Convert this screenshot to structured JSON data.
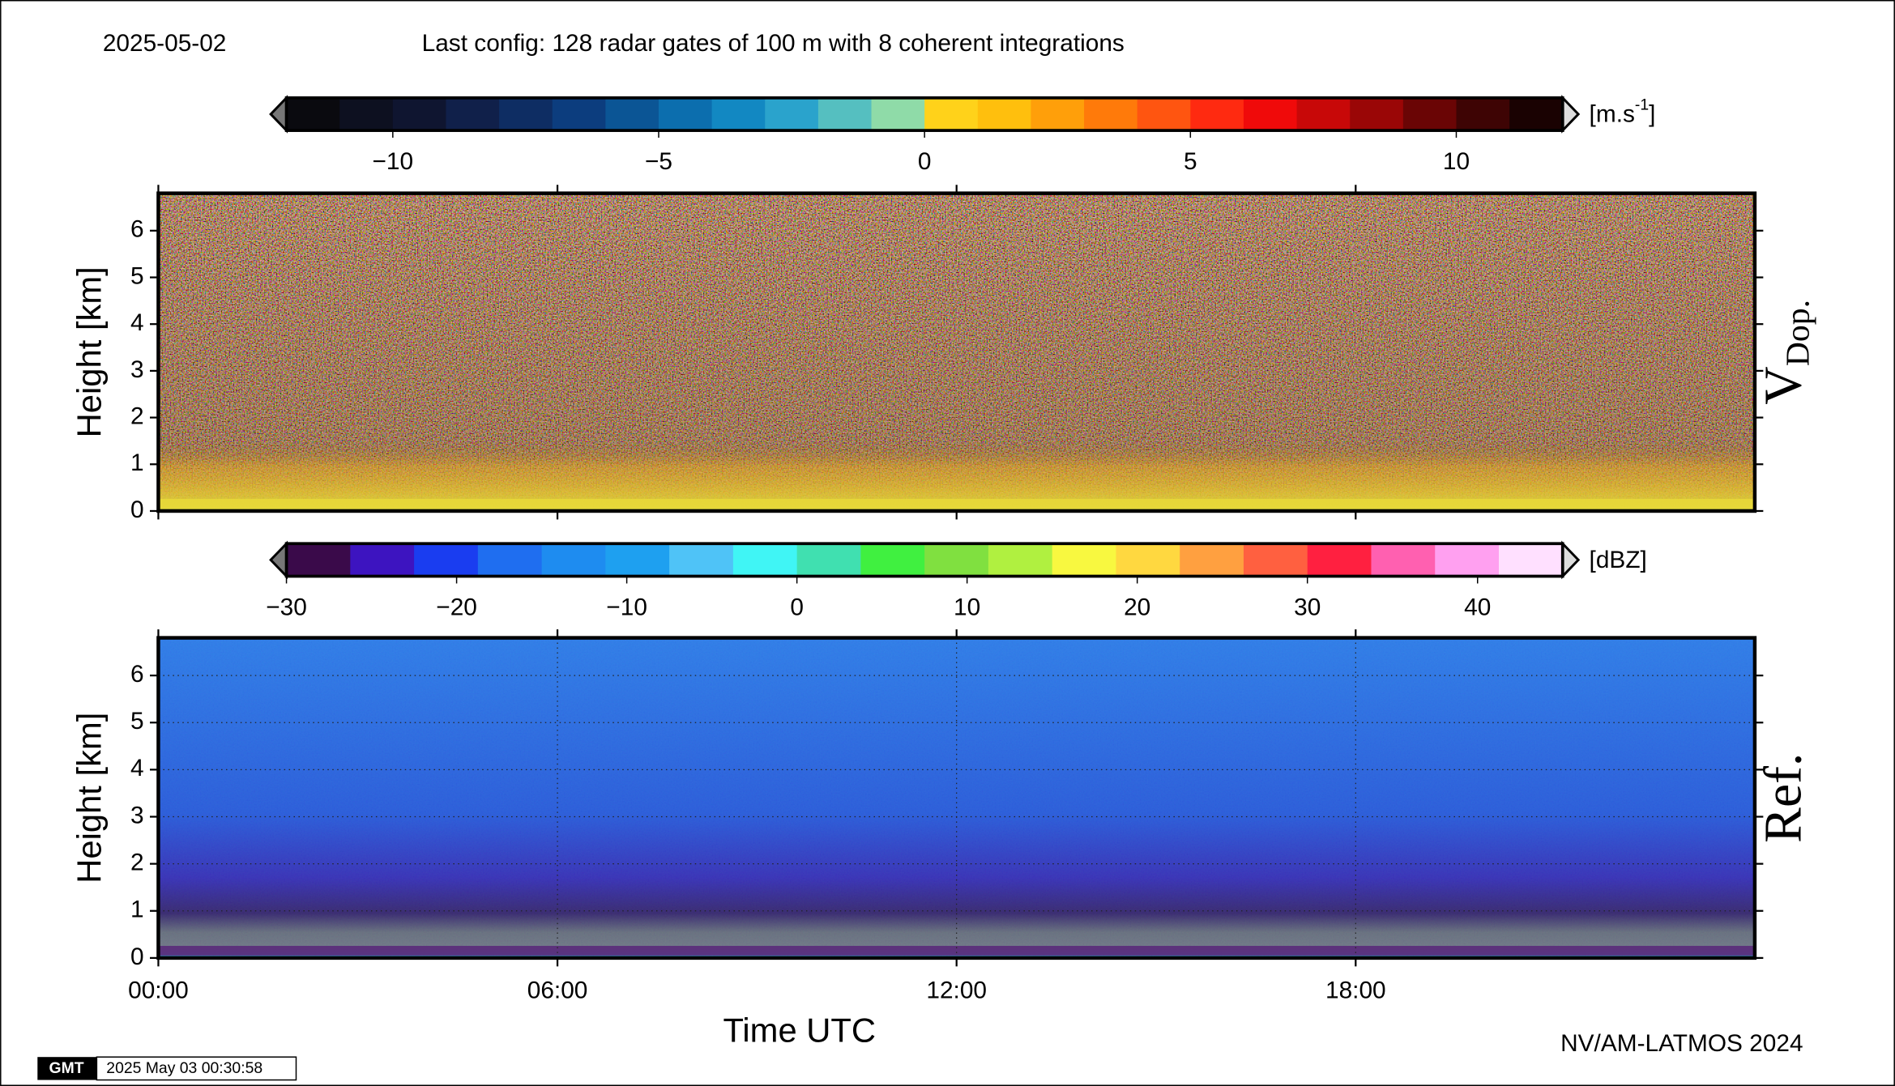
{
  "header": {
    "date": "2025-05-02",
    "config": "Last config: 128 radar gates of 100 m with 8 coherent integrations"
  },
  "colorbars": [
    {
      "unit": "[m.s",
      "unit_sup": "-1",
      "unit_end": "]",
      "lim": [
        -12,
        12
      ],
      "ticks": [
        {
          "value": -10,
          "label": "−10"
        },
        {
          "value": -5,
          "label": "−5"
        },
        0,
        5,
        10
      ],
      "colors": [
        "#0a0a0f",
        "#0d1020",
        "#0f1530",
        "#10204a",
        "#0e2d63",
        "#0c3d7e",
        "#0b5595",
        "#0c6eae",
        "#1288c2",
        "#2aa3cc",
        "#55bfc0",
        "#8fdba8",
        "#ffd21a",
        "#ffbf0d",
        "#ff9f0a",
        "#ff7a0a",
        "#ff5510",
        "#ff2a10",
        "#f00a0a",
        "#c80808",
        "#9a0606",
        "#6a0505",
        "#3e0404",
        "#1a0202"
      ]
    },
    {
      "unit": "[dBZ]",
      "lim": [
        -30,
        45
      ],
      "ticks": [
        {
          "value": -30,
          "label": "−30"
        },
        {
          "value": -20,
          "label": "−20"
        },
        {
          "value": -10,
          "label": "−10"
        },
        0,
        10,
        20,
        30,
        40
      ],
      "colors": [
        "#3a0a4a",
        "#3d14c0",
        "#1a3df0",
        "#1f6ef0",
        "#1e8cf0",
        "#1ea0f0",
        "#4fc3f7",
        "#40f5f5",
        "#40e0b0",
        "#40f040",
        "#80e040",
        "#b0f040",
        "#f8f840",
        "#ffd840",
        "#ffa040",
        "#ff6040",
        "#ff2040",
        "#ff60b0",
        "#ffa0f0",
        "#ffe0ff"
      ]
    }
  ],
  "chart_data": {
    "type": "heatmap",
    "xlabel": "Time UTC",
    "xlim": [
      0,
      24
    ],
    "xticks": [
      {
        "value": 0,
        "label": "00:00"
      },
      {
        "value": 6,
        "label": "06:00"
      },
      {
        "value": 12,
        "label": "12:00"
      },
      {
        "value": 18,
        "label": "18:00"
      }
    ],
    "panels": [
      {
        "ylabel": "Height [km]",
        "side_label": "V",
        "side_sub": "Dop.",
        "ylim": [
          0,
          6.8
        ],
        "yticks": [
          0,
          1,
          2,
          3,
          4,
          5,
          6
        ],
        "grid": false
      },
      {
        "ylabel": "Height [km]",
        "side_label": "Ref.",
        "ylim": [
          0,
          6.8
        ],
        "yticks": [
          0,
          1,
          2,
          3,
          4,
          5,
          6
        ],
        "grid": true
      }
    ]
  },
  "footer": {
    "credit": "NV/AM-LATMOS 2024",
    "logo": "GMT",
    "timestamp": "2025 May 03 00:30:58"
  }
}
